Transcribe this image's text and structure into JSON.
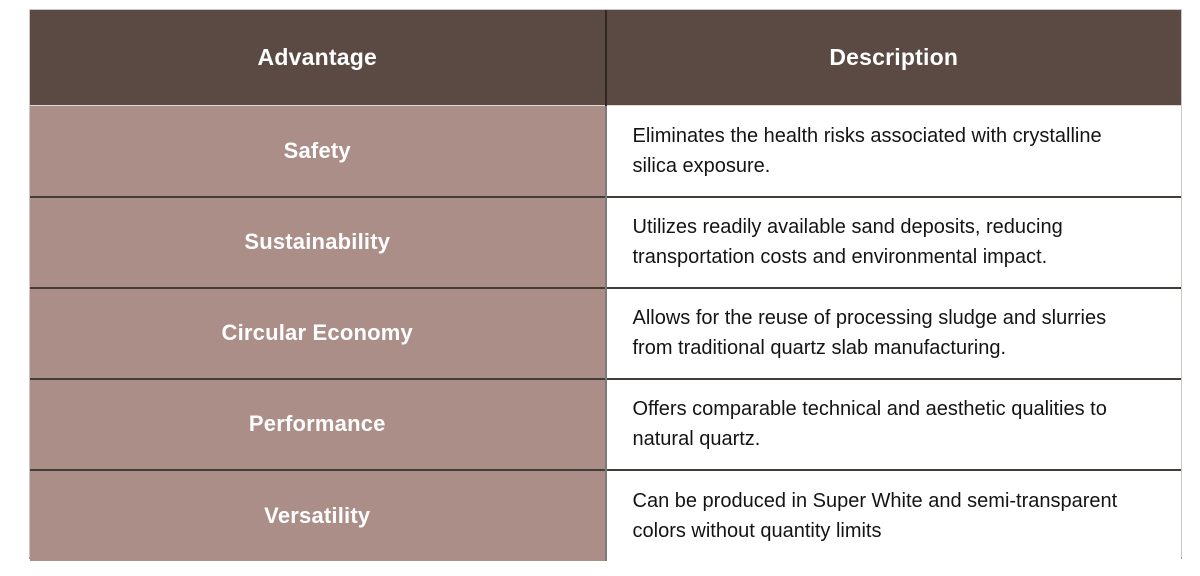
{
  "colors": {
    "header_bg": "#5b4a43",
    "header_text": "#ffffff",
    "advantage_bg": "#ac8e88",
    "advantage_text": "#ffffff",
    "description_bg": "#ffffff",
    "description_text": "#141414",
    "row_divider": "#433c39",
    "column_divider_header": "#2e2720",
    "column_divider_body": "#807876",
    "outer_border": "#cdc7c4",
    "bottom_border": "#8d8885"
  },
  "table": {
    "columns": [
      {
        "label": "Advantage"
      },
      {
        "label": "Description"
      }
    ],
    "rows": [
      {
        "advantage": "Safety",
        "description": "Eliminates the health risks associated with crystalline silica exposure."
      },
      {
        "advantage": "Sustainability",
        "description": "Utilizes readily available sand deposits, reducing transportation costs and environmental impact."
      },
      {
        "advantage": "Circular Economy",
        "description": "Allows for the reuse of processing sludge and slurries from traditional quartz slab manufacturing."
      },
      {
        "advantage": "Performance",
        "description": "Offers comparable technical and aesthetic qualities to natural quartz."
      },
      {
        "advantage": "Versatility",
        "description": "Can be produced in Super White and semi-transparent colors without quantity limits"
      }
    ]
  }
}
